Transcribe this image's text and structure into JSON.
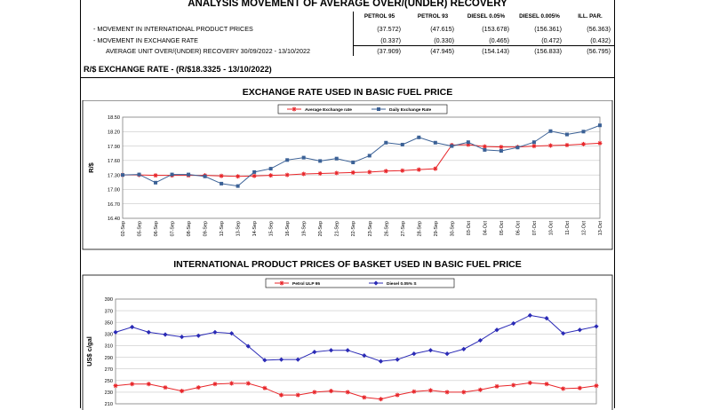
{
  "header": {
    "title": "ANALYSIS MOVEMENT OF AVERAGE OVER/(UNDER) RECOVERY",
    "columns": [
      "PETROL 95",
      "PETROL 93",
      "DIESEL 0.05%",
      "DIESEL 0.005%",
      "ILL. PAR."
    ],
    "rows": [
      {
        "label": "- MOVEMENT IN INTERNATIONAL PRODUCT PRICES",
        "values": [
          "(37.572)",
          "(47.615)",
          "(153.678)",
          "(156.361)",
          "(56.363)"
        ]
      },
      {
        "label": "- MOVEMENT IN EXCHANGE RATE",
        "values": [
          "(0.337)",
          "(0.330)",
          "(0.465)",
          "(0.472)",
          "(0.432)"
        ]
      },
      {
        "label": "AVERAGE UNIT OVER/(UNDER) RECOVERY 30/09/2022 - 13/10/2022",
        "values": [
          "(37.909)",
          "(47.945)",
          "(154.143)",
          "(156.833)",
          "(56.795)"
        ]
      }
    ],
    "exchange_rate_line": "R/$ EXCHANGE RATE - (R/$18.3325 - 13/10/2022)"
  },
  "chart_data": [
    {
      "type": "line",
      "title": "EXCHANGE RATE USED IN BASIC FUEL PRICE",
      "ylabel": "R/$",
      "ylim": [
        16.4,
        18.5
      ],
      "yticks": [
        "18.50",
        "18.20",
        "17.90",
        "17.60",
        "17.30",
        "17.00",
        "16.70",
        "16.40"
      ],
      "legend_placement": "top-center",
      "grid": true,
      "x": [
        "02-Sep",
        "05-Sep",
        "06-Sep",
        "07-Sep",
        "08-Sep",
        "09-Sep",
        "12-Sep",
        "13-Sep",
        "14-Sep",
        "15-Sep",
        "16-Sep",
        "19-Sep",
        "20-Sep",
        "21-Sep",
        "22-Sep",
        "23-Sep",
        "26-Sep",
        "27-Sep",
        "28-Sep",
        "29-Sep",
        "30-Sep",
        "03-Oct",
        "04-Oct",
        "05-Oct",
        "06-Oct",
        "07-Oct",
        "10-Oct",
        "11-Oct",
        "12-Oct",
        "13-Oct"
      ],
      "series": [
        {
          "name": "Average Exchange rate",
          "color": "#e8262a",
          "marker": "star",
          "values": [
            17.3,
            17.3,
            17.29,
            17.29,
            17.29,
            17.29,
            17.28,
            17.27,
            17.28,
            17.29,
            17.3,
            17.32,
            17.33,
            17.34,
            17.35,
            17.36,
            17.38,
            17.39,
            17.41,
            17.43,
            17.92,
            17.93,
            17.89,
            17.88,
            17.88,
            17.9,
            17.91,
            17.92,
            17.94,
            17.96
          ]
        },
        {
          "name": "Daily Exchange Rate",
          "color": "#3b6196",
          "marker": "square",
          "values": [
            17.3,
            17.31,
            17.14,
            17.31,
            17.31,
            17.27,
            17.12,
            17.07,
            17.36,
            17.43,
            17.61,
            17.66,
            17.59,
            17.64,
            17.56,
            17.7,
            17.97,
            17.93,
            18.08,
            17.97,
            17.9,
            17.98,
            17.82,
            17.8,
            17.87,
            17.98,
            18.21,
            18.14,
            18.2,
            18.33
          ]
        }
      ]
    },
    {
      "type": "line",
      "title": "INTERNATIONAL PRODUCT PRICES OF BASKET USED IN BASIC FUEL PRICE",
      "ylabel": "US$ c/gal",
      "ylim": [
        210,
        390
      ],
      "yticks": [
        "390",
        "370",
        "350",
        "330",
        "310",
        "290",
        "270",
        "250",
        "230",
        "210"
      ],
      "legend_placement": "top-center",
      "grid": true,
      "series": [
        {
          "name": "Petrol ULP 95",
          "color": "#e8262a",
          "marker": "star",
          "values": [
            241,
            244,
            244,
            238,
            232,
            238,
            244,
            245,
            245,
            237,
            225,
            225,
            230,
            232,
            230,
            221,
            218,
            225,
            231,
            233,
            230,
            230,
            234,
            240,
            242,
            246,
            244,
            236,
            237,
            241
          ]
        },
        {
          "name": "Diesel 0.05% S",
          "color": "#2b2bb6",
          "marker": "diamond",
          "values": [
            333,
            342,
            333,
            329,
            325,
            327,
            333,
            331,
            309,
            285,
            286,
            286,
            299,
            302,
            302,
            293,
            283,
            286,
            296,
            302,
            296,
            304,
            319,
            337,
            348,
            362,
            357,
            331,
            337,
            343
          ]
        }
      ]
    }
  ]
}
